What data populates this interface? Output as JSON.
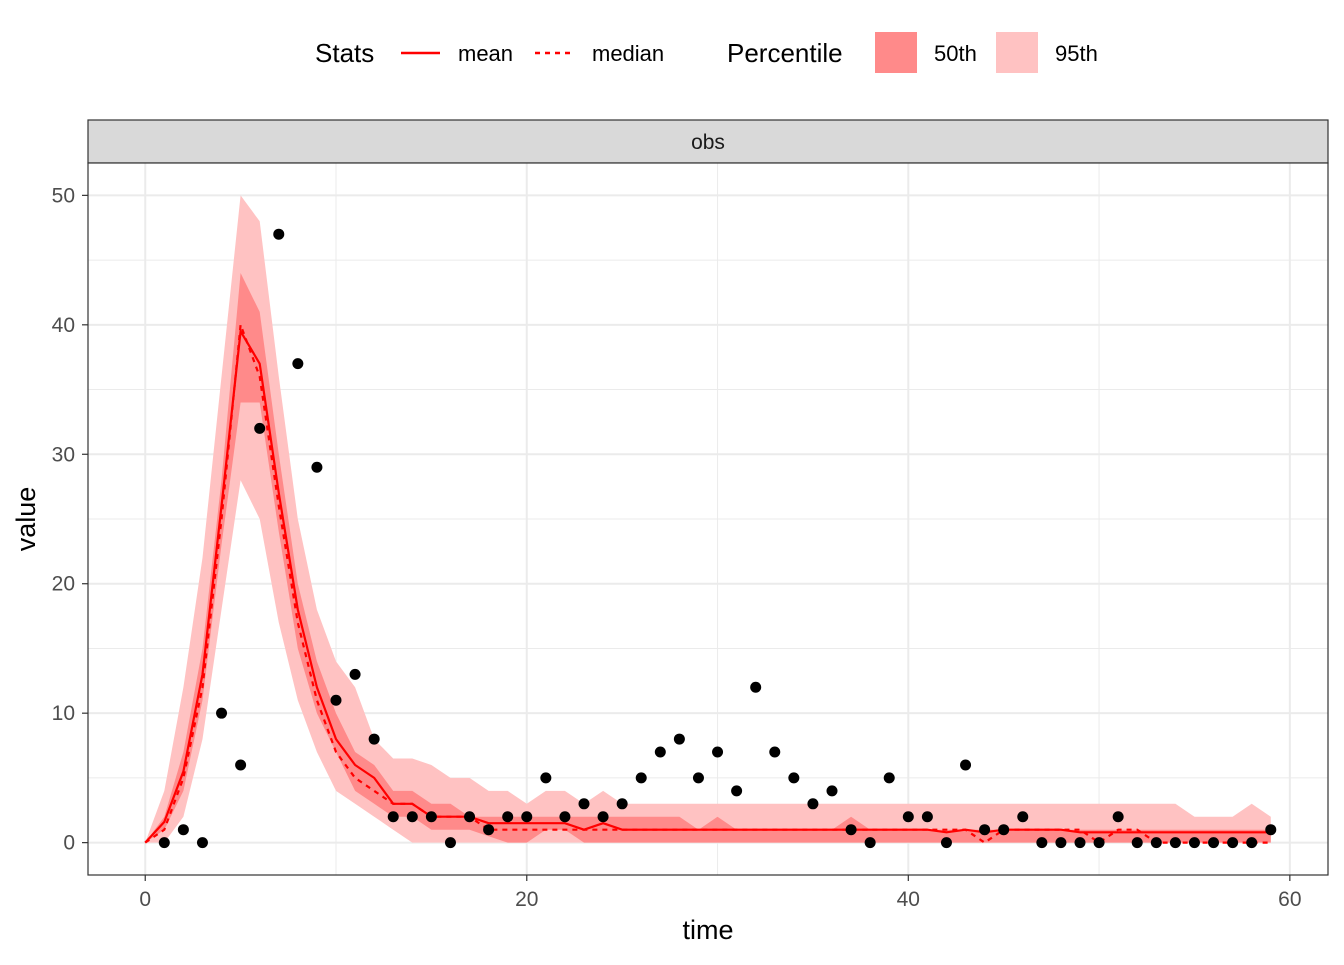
{
  "legend": {
    "stats_title": "Stats",
    "mean_label": "mean",
    "median_label": "median",
    "percentile_title": "Percentile",
    "p50_label": "50th",
    "p95_label": "95th"
  },
  "panel": {
    "strip_label": "obs"
  },
  "colors": {
    "line": "#ff0000",
    "band50": "#ff8a8a",
    "band95": "#ffc2c2",
    "points": "#000000",
    "strip_bg": "#d9d9d9",
    "grid": "#ebebeb"
  },
  "chart_data": {
    "type": "line",
    "xlabel": "time",
    "ylabel": "value",
    "xlim": [
      -3,
      62
    ],
    "ylim": [
      -2.5,
      52.5
    ],
    "xticks": [
      0,
      20,
      40,
      60
    ],
    "yticks": [
      0,
      10,
      20,
      30,
      40,
      50
    ],
    "grid": true,
    "legend_position": "top",
    "time": [
      0,
      1,
      2,
      3,
      4,
      5,
      6,
      7,
      8,
      9,
      10,
      11,
      12,
      13,
      14,
      15,
      16,
      17,
      18,
      19,
      20,
      21,
      22,
      23,
      24,
      25,
      26,
      27,
      28,
      29,
      30,
      31,
      32,
      33,
      34,
      35,
      36,
      37,
      38,
      39,
      40,
      41,
      42,
      43,
      44,
      45,
      46,
      47,
      48,
      49,
      50,
      51,
      52,
      53,
      54,
      55,
      56,
      57,
      58,
      59
    ],
    "mean": [
      0,
      1.6,
      5.5,
      13,
      26,
      39.5,
      37,
      27,
      18,
      12,
      8,
      6,
      5,
      3,
      3,
      2,
      2,
      2,
      1.5,
      1.5,
      1.5,
      1.5,
      1.5,
      1,
      1.5,
      1,
      1,
      1,
      1,
      1,
      1,
      1,
      1,
      1,
      1,
      1,
      1,
      1,
      1,
      1,
      1,
      1,
      0.8,
      1,
      0.8,
      1,
      1,
      1,
      1,
      0.8,
      0.8,
      0.8,
      0.8,
      0.8,
      0.8,
      0.8,
      0.8,
      0.8,
      0.8,
      0.8
    ],
    "median": [
      0,
      1,
      5,
      12,
      25,
      40,
      36,
      26,
      17,
      11,
      7,
      5,
      4,
      3,
      3,
      2,
      2,
      2,
      1,
      1,
      1,
      1,
      1,
      1,
      1,
      1,
      1,
      1,
      1,
      1,
      1,
      1,
      1,
      1,
      1,
      1,
      1,
      1,
      1,
      1,
      1,
      1,
      1,
      1,
      0,
      1,
      1,
      1,
      1,
      1,
      0,
      1,
      1,
      0,
      0,
      0,
      0,
      0,
      0,
      0
    ],
    "p50_band": {
      "lower": [
        0,
        1,
        4,
        11,
        23,
        34,
        34,
        24,
        15,
        10,
        7,
        4,
        3,
        2,
        2,
        1,
        1,
        1,
        0.5,
        0,
        0,
        1,
        1,
        0,
        0,
        0,
        0,
        0,
        0,
        0,
        0,
        0,
        0,
        0,
        0,
        0,
        0,
        0,
        0,
        0,
        0,
        0,
        0,
        0,
        0,
        0,
        0,
        0,
        0,
        0,
        0,
        0,
        0,
        0,
        0,
        0,
        0,
        0,
        0,
        0
      ],
      "upper": [
        0,
        2,
        7,
        15,
        28,
        44,
        41,
        30,
        20,
        14,
        10,
        7,
        6,
        4,
        4,
        3,
        3,
        2,
        2,
        2,
        2,
        2,
        2,
        2,
        2,
        2,
        2,
        2,
        2,
        1,
        2,
        1,
        1,
        1,
        1,
        1,
        1,
        2,
        1,
        1,
        1,
        1,
        1,
        1,
        1,
        1,
        1,
        1,
        1,
        1,
        1,
        1,
        1,
        1,
        1,
        1,
        1,
        1,
        1,
        1
      ]
    },
    "p95_band": {
      "lower": [
        0,
        0,
        2,
        8,
        18,
        28,
        25,
        17,
        11,
        7,
        4,
        3,
        2,
        1,
        0,
        0,
        0,
        0,
        0,
        0,
        0,
        0,
        0,
        0,
        0,
        0,
        0,
        0,
        0,
        0,
        0,
        0,
        0,
        0,
        0,
        0,
        0,
        0,
        0,
        0,
        0,
        0,
        0,
        0,
        0,
        0,
        0,
        0,
        0,
        0,
        0,
        0,
        0,
        0,
        0,
        0,
        0,
        0,
        0,
        0
      ],
      "upper": [
        0,
        4,
        12,
        22,
        36,
        50,
        48,
        36,
        25,
        18,
        14,
        12,
        8,
        6.5,
        6.5,
        6,
        5,
        5,
        4,
        4,
        3,
        4,
        4,
        3,
        4,
        3,
        3,
        3,
        3,
        3,
        3,
        3,
        3,
        3,
        3,
        3,
        3,
        3,
        3,
        3,
        3,
        3,
        3,
        3,
        3,
        3,
        3,
        3,
        3,
        3,
        3,
        3,
        3,
        3,
        3,
        2,
        2,
        2,
        3,
        2
      ]
    },
    "observations": {
      "x": [
        1,
        2,
        3,
        4,
        5,
        6,
        7,
        8,
        9,
        10,
        11,
        12,
        13,
        14,
        15,
        16,
        17,
        18,
        19,
        20,
        21,
        22,
        23,
        24,
        25,
        26,
        27,
        28,
        29,
        30,
        31,
        32,
        33,
        34,
        35,
        36,
        37,
        38,
        39,
        40,
        41,
        42,
        43,
        44,
        45,
        46,
        47,
        48,
        49,
        50,
        51,
        52,
        53,
        54,
        55,
        56,
        57,
        58,
        59
      ],
      "y": [
        0,
        1,
        0,
        10,
        6,
        32,
        47,
        37,
        29,
        11,
        13,
        8,
        2,
        2,
        2,
        0,
        2,
        1,
        2,
        2,
        5,
        2,
        3,
        2,
        3,
        5,
        7,
        8,
        5,
        7,
        4,
        12,
        7,
        5,
        3,
        4,
        1,
        0,
        5,
        2,
        2,
        0,
        6,
        1,
        1,
        2,
        0,
        0,
        0,
        0,
        2,
        0,
        0,
        0,
        0,
        0,
        0,
        0,
        1
      ]
    }
  }
}
